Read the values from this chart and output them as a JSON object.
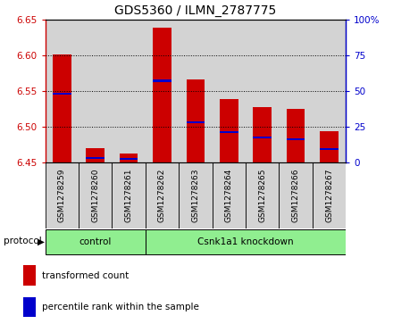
{
  "title": "GDS5360 / ILMN_2787775",
  "samples": [
    "GSM1278259",
    "GSM1278260",
    "GSM1278261",
    "GSM1278262",
    "GSM1278263",
    "GSM1278264",
    "GSM1278265",
    "GSM1278266",
    "GSM1278267"
  ],
  "red_values": [
    6.601,
    6.469,
    6.462,
    6.638,
    6.566,
    6.538,
    6.527,
    6.524,
    6.493
  ],
  "blue_values_pct": [
    48,
    3,
    2,
    57,
    28,
    21,
    17,
    16,
    9
  ],
  "y_min": 6.45,
  "y_max": 6.65,
  "y_ticks": [
    6.45,
    6.5,
    6.55,
    6.6,
    6.65
  ],
  "y_right_ticks": [
    0,
    25,
    50,
    75,
    100
  ],
  "y_right_labels": [
    "0",
    "25",
    "50",
    "75",
    "100%"
  ],
  "groups": [
    {
      "label": "control",
      "start": 0,
      "end": 3
    },
    {
      "label": "Csnk1a1 knockdown",
      "start": 3,
      "end": 9
    }
  ],
  "protocol_label": "protocol",
  "bar_color": "#cc0000",
  "blue_color": "#0000cc",
  "group_fill": "#90ee90",
  "sample_bg": "#d3d3d3",
  "legend_items": [
    {
      "color": "#cc0000",
      "label": "transformed count"
    },
    {
      "color": "#0000cc",
      "label": "percentile rank within the sample"
    }
  ],
  "bar_width": 0.55,
  "title_fontsize": 10
}
